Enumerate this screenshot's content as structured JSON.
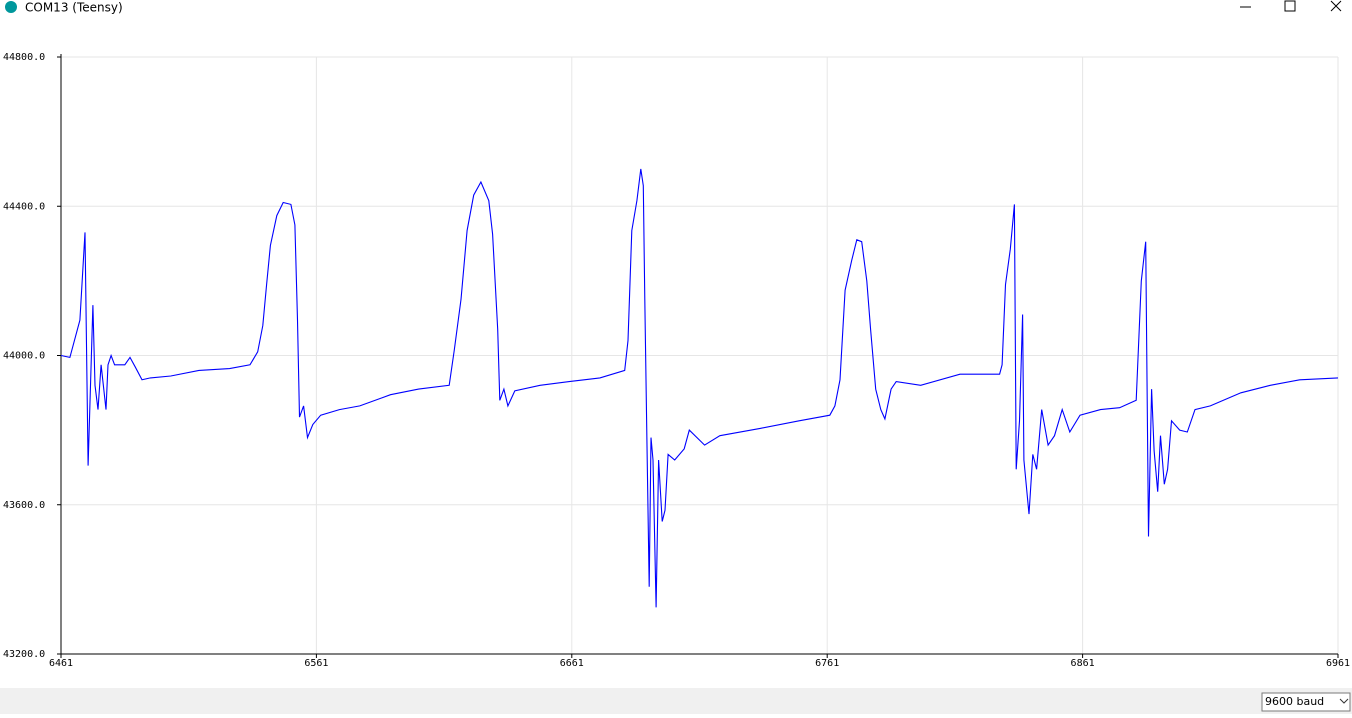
{
  "window": {
    "title": "COM13 (Teensy)"
  },
  "footer": {
    "baud": "9600 baud"
  },
  "chart_data": {
    "type": "line",
    "color": "#0000ff",
    "grid": true,
    "xlim": [
      6461,
      6961
    ],
    "xticks": [
      6461,
      6561,
      6661,
      6761,
      6861,
      6961
    ],
    "ylim": [
      43200,
      44800
    ],
    "yticks": [
      {
        "value": 43200,
        "label": "43200.0"
      },
      {
        "value": 43600,
        "label": "43600.0"
      },
      {
        "value": 44000,
        "label": "44000.0"
      },
      {
        "value": 44400,
        "label": "44400.0"
      },
      {
        "value": 44800,
        "label": "44800.0"
      }
    ],
    "x": [
      6461,
      6464.5,
      6468.4,
      6470.4,
      6471.6,
      6473.5,
      6474.3,
      6475.5,
      6476.7,
      6478.6,
      6479.4,
      6480.6,
      6482,
      6486,
      6488,
      6490,
      6492.7,
      6496,
      6504,
      6515,
      6527,
      6535,
      6538,
      6540,
      6541.5,
      6543,
      6545.5,
      6548,
      6551,
      6552.6,
      6553.6,
      6554.4,
      6556,
      6557.5,
      6559.6,
      6562.7,
      6570,
      6578,
      6590,
      6601,
      6613,
      6615,
      6617.6,
      6620,
      6622.6,
      6625.4,
      6628.5,
      6630,
      6632,
      6632.8,
      6634.4,
      6636,
      6638.7,
      6648.6,
      6660,
      6672,
      6681.7,
      6683,
      6684.5,
      6686.5,
      6688,
      6689,
      6689.6,
      6690.4,
      6691.3,
      6692,
      6692.8,
      6694,
      6695,
      6696.4,
      6697.5,
      6698.7,
      6701.3,
      6705,
      6707,
      6713,
      6719,
      6735,
      6750,
      6762,
      6764,
      6766,
      6768,
      6770.6,
      6772.6,
      6774.5,
      6776.5,
      6778,
      6780,
      6782,
      6783.6,
      6786,
      6788,
      6797.6,
      6813,
      6828.5,
      6829.5,
      6830.8,
      6832.7,
      6834.3,
      6835,
      6836.3,
      6837.5,
      6838,
      6840,
      6841.5,
      6843,
      6845,
      6847.5,
      6850,
      6853,
      6856,
      6860,
      6868,
      6875.5,
      6882,
      6884,
      6885.7,
      6886.8,
      6888,
      6889,
      6890.4,
      6891.5,
      6893,
      6894.3,
      6895.8,
      6899,
      6902,
      6905,
      6911,
      6923,
      6934.5,
      6946,
      6961
    ],
    "values": [
      44000,
      43995,
      44095,
      44330,
      43705,
      44135,
      43920,
      43855,
      43975,
      43855,
      43975,
      44000,
      43975,
      43975,
      43995,
      43970,
      43935,
      43940,
      43945,
      43960,
      43965,
      43975,
      44010,
      44080,
      44190,
      44295,
      44375,
      44410,
      44405,
      44350,
      44095,
      43835,
      43865,
      43780,
      43815,
      43840,
      43855,
      43865,
      43895,
      43910,
      43920,
      44015,
      44150,
      44335,
      44430,
      44465,
      44415,
      44325,
      44070,
      43880,
      43910,
      43865,
      43905,
      43920,
      43930,
      43940,
      43960,
      44040,
      44335,
      44415,
      44500,
      44455,
      44150,
      43775,
      43380,
      43780,
      43720,
      43325,
      43720,
      43555,
      43585,
      43735,
      43720,
      43750,
      43800,
      43760,
      43785,
      43805,
      43825,
      43840,
      43865,
      43935,
      44175,
      44255,
      44310,
      44305,
      44200,
      44070,
      43910,
      43855,
      43830,
      43910,
      43930,
      43920,
      43950,
      43950,
      43975,
      44190,
      44285,
      44405,
      43695,
      43825,
      44110,
      43720,
      43575,
      43735,
      43695,
      43855,
      43760,
      43785,
      43855,
      43795,
      43840,
      43855,
      43860,
      43880,
      44200,
      44305,
      43515,
      43910,
      43745,
      43635,
      43785,
      43655,
      43695,
      43825,
      43800,
      43795,
      43855,
      43865,
      43900,
      43920,
      43935,
      43940
    ]
  }
}
